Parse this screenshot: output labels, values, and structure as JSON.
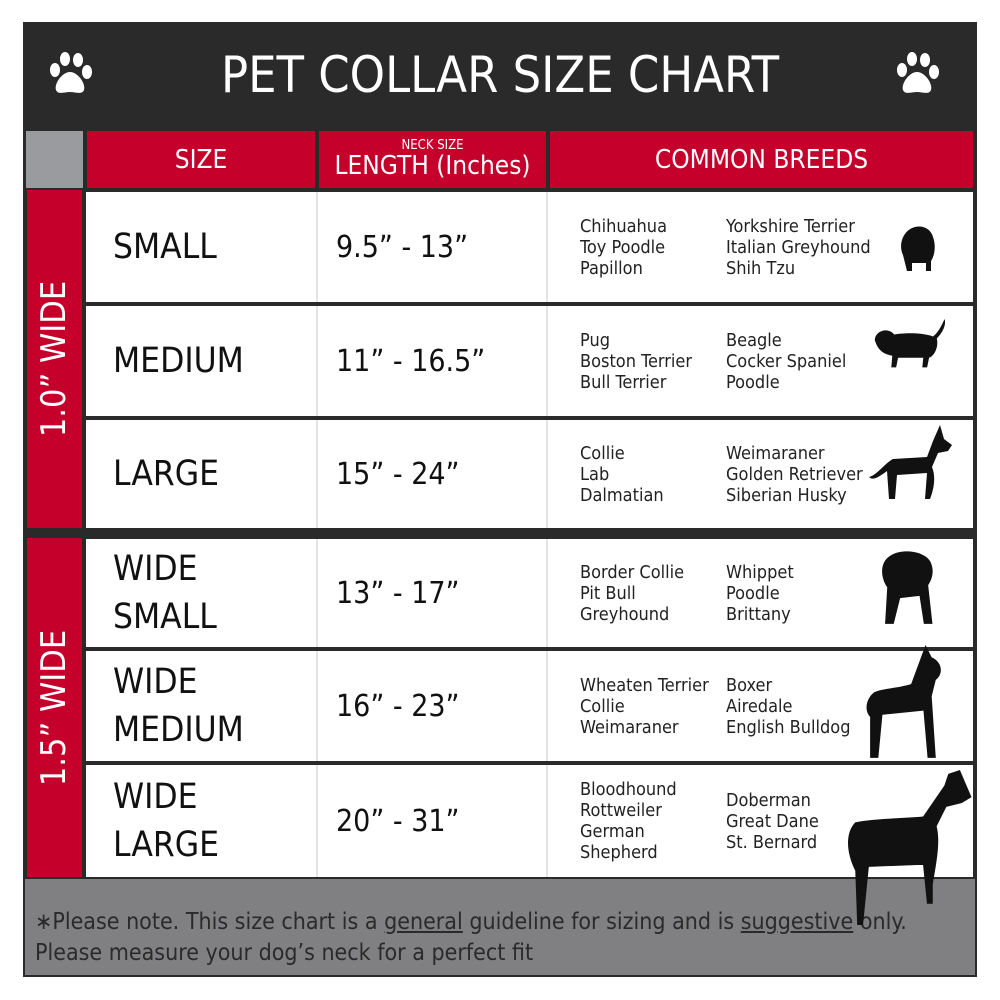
{
  "title": "PET COLLAR SIZE CHART",
  "colors": {
    "dark": "#2a2a2a",
    "red": "#c4002b",
    "gray": "#808083"
  },
  "icons": [
    "paw-icon",
    "dog-silhouette-icon"
  ],
  "headers": {
    "size": "SIZE",
    "neck_small": "NECK SIZE",
    "length": "LENGTH (Inches)",
    "breeds": "COMMON BREEDS"
  },
  "groups": [
    {
      "label": "1.0” WIDE"
    },
    {
      "label": "1.5” WIDE"
    }
  ],
  "rows": [
    {
      "size": "SMALL",
      "length": "9.5” - 13”",
      "breeds_a": [
        "Chihuahua",
        "Toy Poodle",
        "Papillon"
      ],
      "breeds_b": [
        "Yorkshire Terrier",
        "Italian Greyhound",
        "Shih Tzu"
      ]
    },
    {
      "size": "MEDIUM",
      "length": "11” - 16.5”",
      "breeds_a": [
        "Pug",
        "Boston Terrier",
        "Bull Terrier"
      ],
      "breeds_b": [
        "Beagle",
        "Cocker Spaniel",
        "Poodle"
      ]
    },
    {
      "size": "LARGE",
      "length": "15” - 24”",
      "breeds_a": [
        "Collie",
        "Lab",
        "Dalmatian"
      ],
      "breeds_b": [
        "Weimaraner",
        "Golden Retriever",
        "Siberian Husky"
      ]
    },
    {
      "size": "WIDE SMALL",
      "length": "13” - 17”",
      "breeds_a": [
        "Border Collie",
        "Pit Bull",
        "Greyhound"
      ],
      "breeds_b": [
        "Whippet",
        "Poodle",
        "Brittany"
      ]
    },
    {
      "size": "WIDE MEDIUM",
      "length": "16” - 23”",
      "breeds_a": [
        "Wheaten Terrier",
        "Collie",
        "Weimaraner"
      ],
      "breeds_b": [
        "Boxer",
        "Airedale",
        "English Bulldog"
      ]
    },
    {
      "size": "WIDE LARGE",
      "length": "20” - 31”",
      "breeds_a": [
        "Bloodhound",
        "Rottweiler",
        "German Shepherd"
      ],
      "breeds_b": [
        "Doberman",
        "Great Dane",
        "St. Bernard"
      ]
    }
  ],
  "footer": {
    "p1": "∗Please note. This size chart is a ",
    "u1": "general",
    "p2": " guideline for sizing and is ",
    "u2": "suggestive",
    "p3": " only.",
    "line2": "Please measure your dog’s neck for a perfect fit"
  }
}
